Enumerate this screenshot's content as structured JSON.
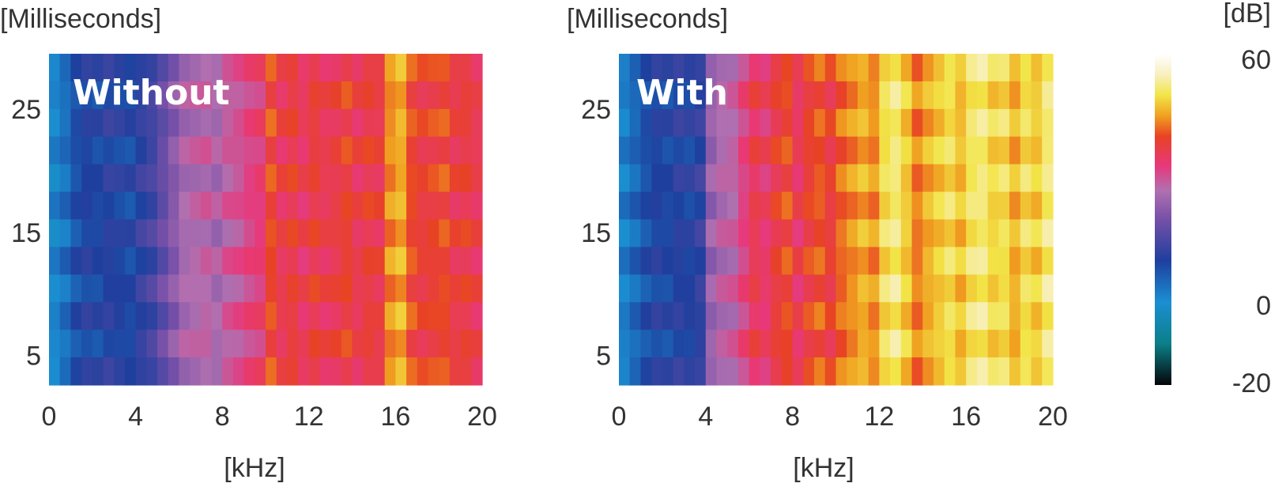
{
  "chart_data": [
    {
      "type": "heatmap",
      "title": "Without",
      "ylabel": "[Milliseconds]",
      "xlabel": "[kHz]",
      "xlim": [
        0,
        20
      ],
      "ylim": [
        2.6,
        29.5
      ],
      "xticks": [
        "0",
        "4",
        "8",
        "12",
        "16",
        "20"
      ],
      "yticks": [
        "5",
        "15",
        "25"
      ],
      "x_bin_kHz": [
        0,
        0.5,
        1,
        1.5,
        2,
        2.5,
        3,
        3.5,
        4,
        4.5,
        5,
        5.5,
        6,
        6.5,
        7,
        7.5,
        8,
        8.5,
        9,
        9.5,
        10,
        10.5,
        11,
        11.5,
        12,
        12.5,
        13,
        13.5,
        14,
        14.5,
        15,
        15.5,
        16,
        16.5,
        17,
        17.5,
        18,
        18.5,
        19,
        19.5
      ],
      "values_dB": [
        1,
        4,
        8,
        10,
        9,
        11,
        10,
        9,
        12,
        14,
        18,
        22,
        26,
        27,
        28,
        26,
        29,
        30,
        32,
        33,
        40,
        36,
        38,
        35,
        38,
        36,
        37,
        39,
        36,
        38,
        37,
        44,
        46,
        40,
        38,
        39,
        40,
        37,
        38,
        36
      ]
    },
    {
      "type": "heatmap",
      "title": "With",
      "ylabel": "[Milliseconds]",
      "xlabel": "[kHz]",
      "xlim": [
        0,
        20
      ],
      "ylim": [
        2.6,
        29.5
      ],
      "xticks": [
        "0",
        "4",
        "8",
        "12",
        "16",
        "20"
      ],
      "yticks": [
        "5",
        "15",
        "25"
      ],
      "x_bin_kHz": [
        0,
        0.5,
        1,
        1.5,
        2,
        2.5,
        3,
        3.5,
        4,
        4.5,
        5,
        5.5,
        6,
        6.5,
        7,
        7.5,
        8,
        8.5,
        9,
        9.5,
        10,
        10.5,
        11,
        11.5,
        12,
        12.5,
        13,
        13.5,
        14,
        14.5,
        15,
        15.5,
        16,
        16.5,
        17,
        17.5,
        18,
        18.5,
        19,
        19.5
      ],
      "values_dB": [
        2,
        5,
        8,
        10,
        9,
        11,
        10,
        12,
        24,
        27,
        28,
        32,
        36,
        34,
        38,
        40,
        35,
        39,
        41,
        38,
        42,
        44,
        46,
        44,
        50,
        52,
        48,
        43,
        46,
        48,
        50,
        47,
        51,
        52,
        49,
        50,
        46,
        50,
        48,
        52
      ]
    }
  ],
  "colorbar": {
    "label": "[dB]",
    "ticks": [
      "60",
      "0",
      "-20"
    ],
    "range": [
      -20,
      60
    ],
    "colors": [
      {
        "dB": -20,
        "hex": "#050508"
      },
      {
        "dB": -10,
        "hex": "#0b7f88"
      },
      {
        "dB": 0,
        "hex": "#1b8fd2"
      },
      {
        "dB": 10,
        "hex": "#1e3f9e"
      },
      {
        "dB": 20,
        "hex": "#7650a8"
      },
      {
        "dB": 27,
        "hex": "#b070b0"
      },
      {
        "dB": 33,
        "hex": "#e8387a"
      },
      {
        "dB": 40,
        "hex": "#e84224"
      },
      {
        "dB": 45,
        "hex": "#f0a020"
      },
      {
        "dB": 50,
        "hex": "#f2e548"
      },
      {
        "dB": 55,
        "hex": "#f8f0c0"
      },
      {
        "dB": 60,
        "hex": "#ffffff"
      }
    ]
  }
}
